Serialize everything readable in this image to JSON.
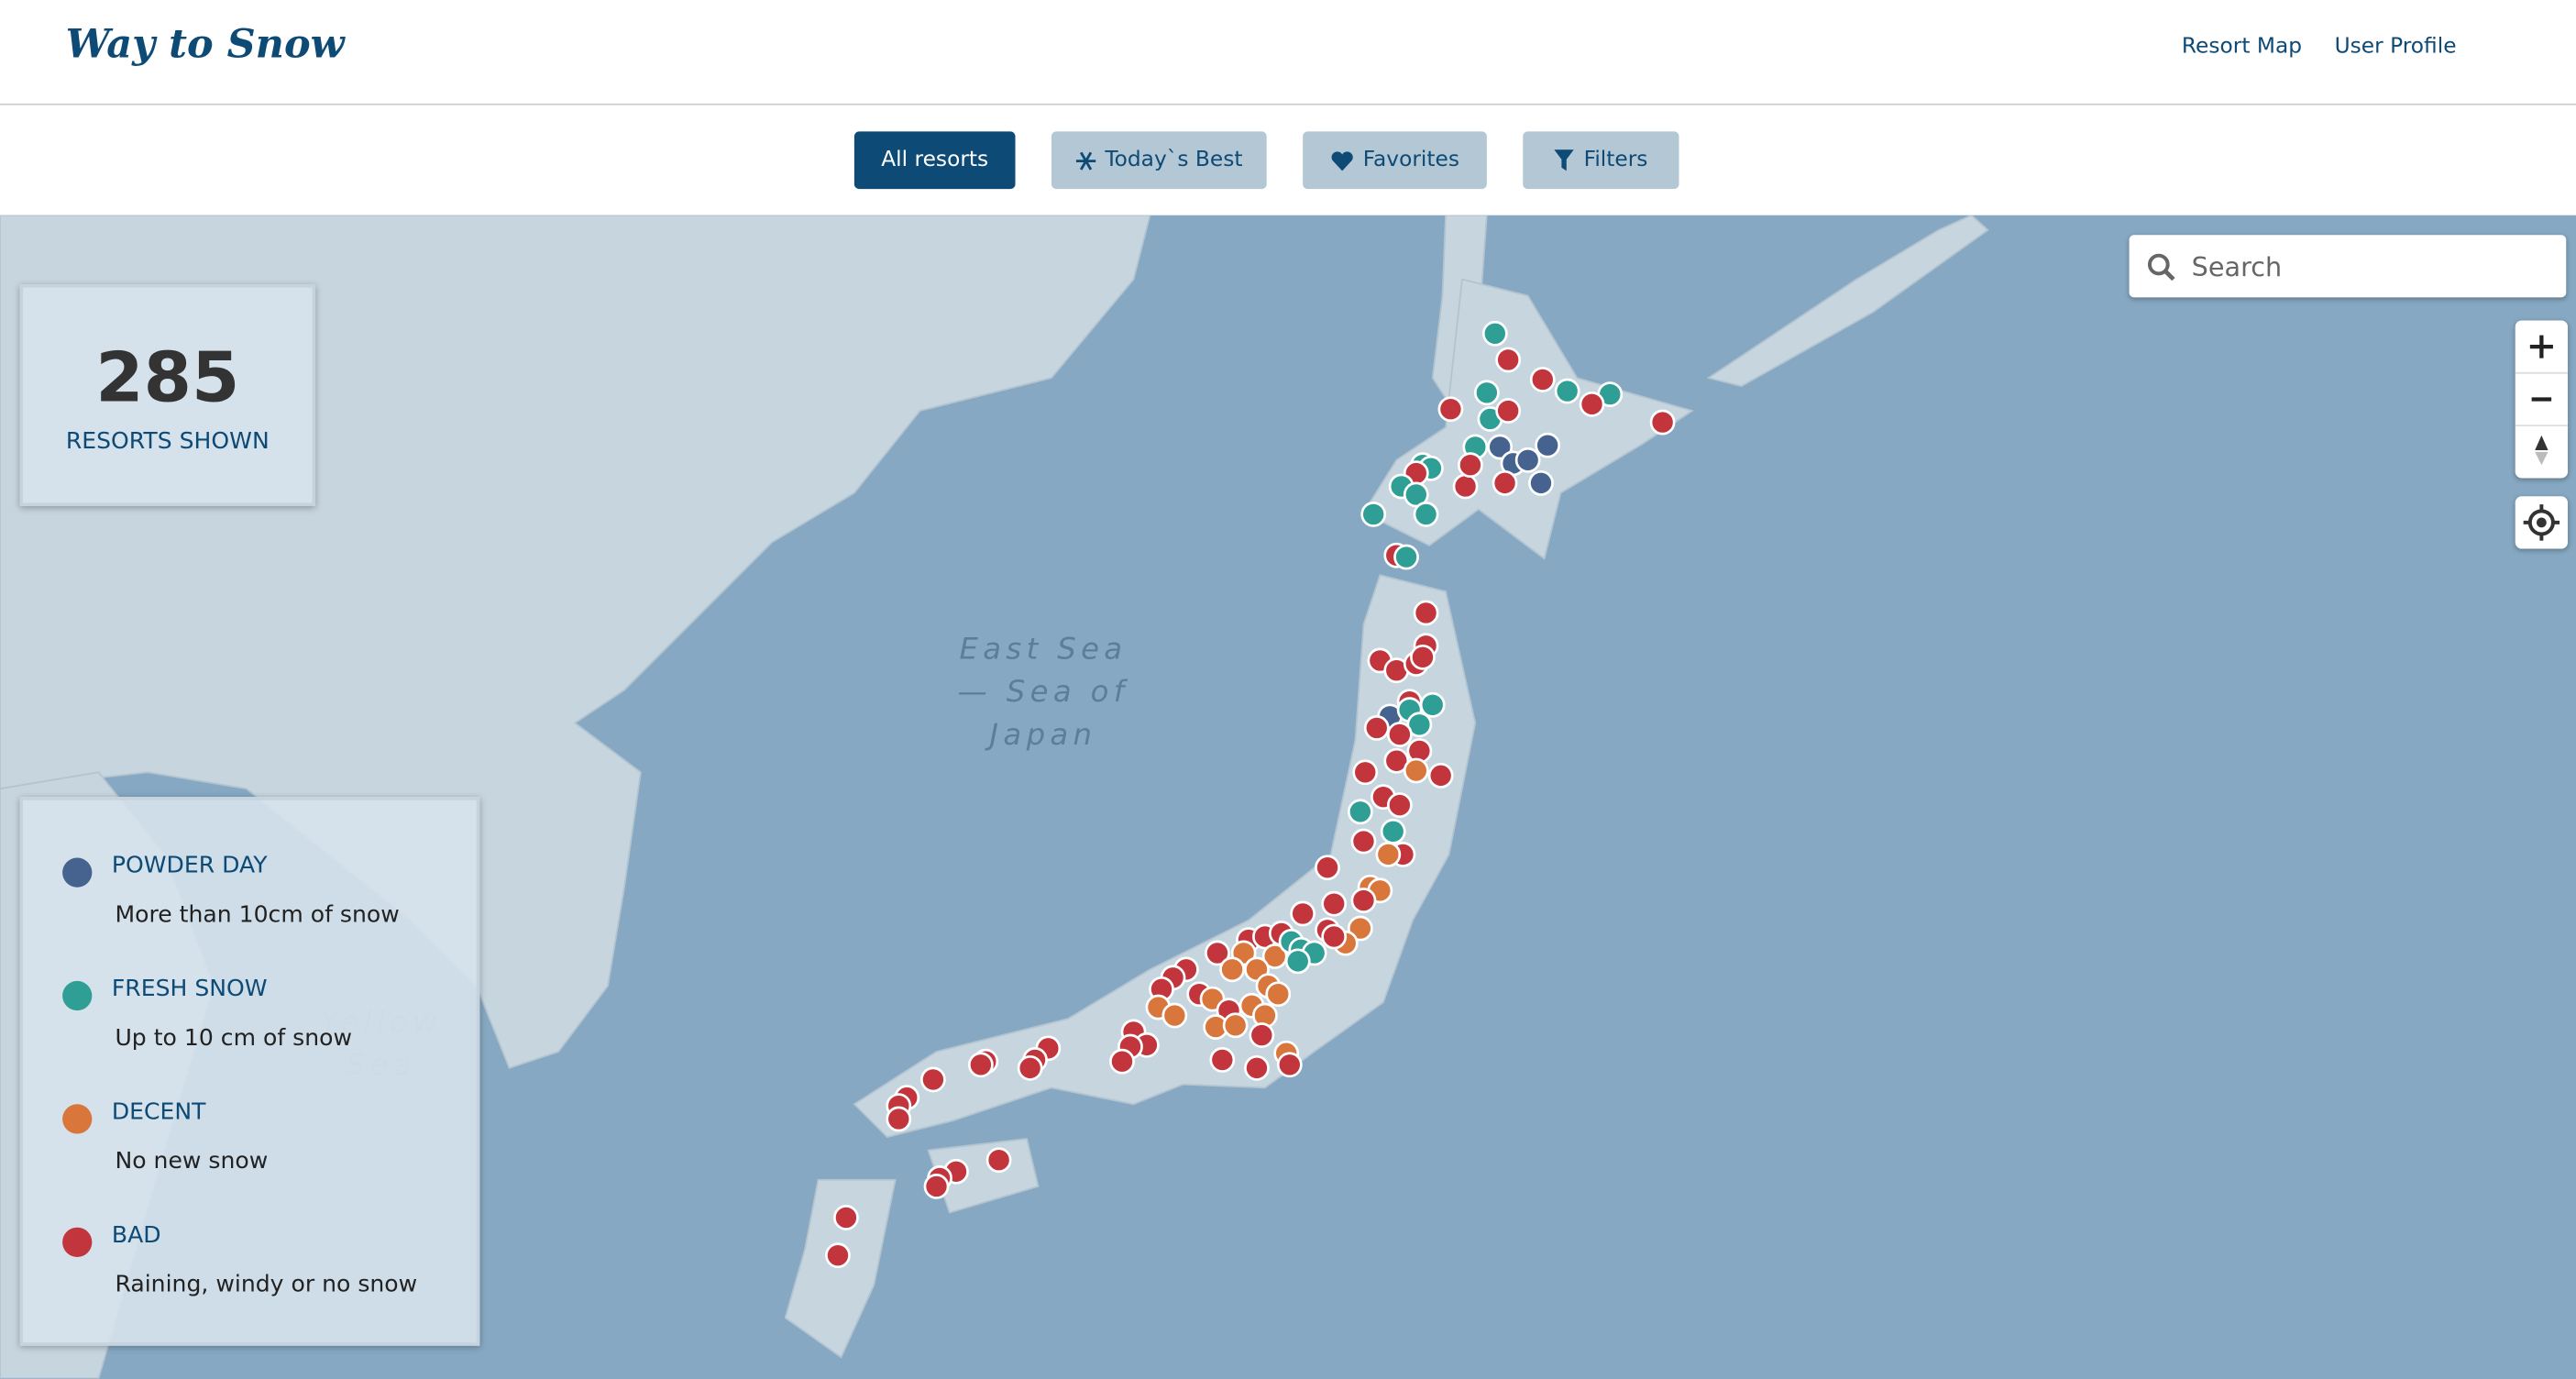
{
  "header": {
    "logo": "Way to Snow",
    "nav": [
      "Resort Map",
      "User Profile"
    ]
  },
  "toolbar": {
    "buttons": [
      {
        "label": "All resorts",
        "active": true
      },
      {
        "label": "Today`s Best"
      },
      {
        "label": "Favorites"
      },
      {
        "label": "Filters"
      }
    ]
  },
  "map": {
    "count": 285,
    "count_label": "RESORTS SHOWN",
    "search_placeholder": "Search",
    "labels": [
      "East Sea",
      "— Sea of",
      "Japan",
      "Yellow",
      "Sea"
    ],
    "legend": [
      {
        "name": "POWDER DAY",
        "description": "More than 10cm of snow",
        "color": "#46628f"
      },
      {
        "name": "FRESH SNOW",
        "description": "Up to 10 cm of snow",
        "color": "#2f9e94"
      },
      {
        "name": "DECENT",
        "description": "No new snow",
        "color": "#d9763c"
      },
      {
        "name": "BAD",
        "description": "Raining, windy or no snow",
        "color": "#c2353c"
      }
    ]
  }
}
